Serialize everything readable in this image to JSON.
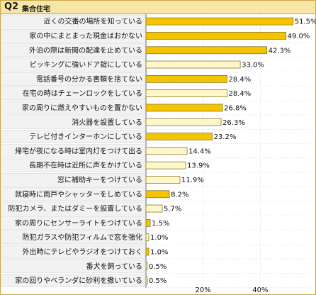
{
  "header": {
    "qnum": "Q2",
    "title": "集合住宅"
  },
  "colors": {
    "highlight_bar": "#f4c400",
    "normal_bar": "#fdf7c9",
    "bar_border": "#8c7a2a",
    "header_bg": "#f7e6a6",
    "label_bg": "#f2f2f2"
  },
  "chart_data": {
    "type": "bar",
    "orientation": "horizontal",
    "categories": [
      "近くの交番の場所を知っている",
      "家の中にまとまった現金はおかない",
      "外泊の際は新聞の配達を止めている",
      "ピッキングに強いドア錠にしている",
      "電話番号の分かる書類を捨てない",
      "在宅の時はチェーンロックをしている",
      "家の周りに燃えやすいものを置かない",
      "消火器を設置している",
      "テレビ付きインターホンにしている",
      "帰宅が夜になる時は室内灯をつけて出る",
      "長期不在時は近所に声をかけている",
      "窓に補助キーをつけている",
      "就寝時に雨戸やシャッターをしめている",
      "防犯カメラ、またはダミーを設置している",
      "家の周りにセンサーライトをつけている",
      "防犯ガラスや防犯フィルムで窓を強化",
      "外出時にテレビやラジオをつけておく",
      "番犬を飼っている",
      "家の回りやベランダに砂利を撒いている"
    ],
    "values": [
      51.5,
      49.0,
      42.3,
      33.0,
      28.4,
      28.4,
      26.8,
      26.3,
      23.2,
      14.4,
      13.9,
      11.9,
      8.2,
      5.7,
      1.5,
      1.0,
      1.0,
      0.5,
      0.5
    ],
    "value_labels": [
      "51.5%",
      "49.0%",
      "42.3%",
      "33.0%",
      "28.4%",
      "28.4%",
      "26.8%",
      "26.3%",
      "23.2%",
      "14.4%",
      "13.9%",
      "11.9%",
      "8.2%",
      "5.7%",
      "1.5%",
      "1.0%",
      "1.0%",
      "0.5%",
      "0.5%"
    ],
    "highlighted": [
      true,
      true,
      true,
      false,
      true,
      false,
      true,
      false,
      true,
      false,
      false,
      false,
      true,
      false,
      true,
      false,
      true,
      false,
      false
    ],
    "xlim": [
      0,
      60
    ],
    "xticks": [
      20,
      40
    ],
    "xtick_labels": [
      "20%",
      "40%"
    ]
  }
}
